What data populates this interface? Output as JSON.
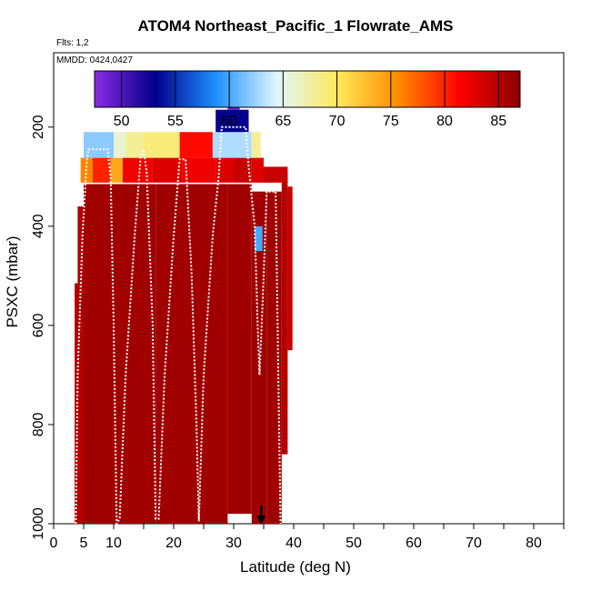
{
  "chart_data": {
    "type": "heatmap",
    "title": "ATOM4 Northeast_Pacific_1 Flowrate_AMS",
    "flights_label": "Flts: 1,2",
    "dates_label": "MMDD: 0424,0427",
    "xlabel": "Latitude (deg N)",
    "ylabel": "PSXC (mbar)",
    "xlim": [
      0,
      85
    ],
    "ylim": [
      1000,
      50
    ],
    "y_reversed": true,
    "x_ticks": [
      "0",
      "5",
      "10",
      "20",
      "30",
      "40",
      "50",
      "60",
      "70",
      "80"
    ],
    "x_tick_values": [
      0,
      5,
      10,
      20,
      30,
      40,
      50,
      60,
      70,
      80
    ],
    "y_ticks": [
      "200",
      "400",
      "600",
      "800",
      "1000"
    ],
    "y_tick_values": [
      200,
      400,
      600,
      800,
      1000
    ],
    "colorbar": {
      "range": [
        47.5,
        87
      ],
      "tick_labels": [
        "50",
        "55",
        "60",
        "65",
        "70",
        "75",
        "80",
        "85"
      ],
      "tick_values": [
        50,
        55,
        60,
        65,
        70,
        75,
        80,
        85
      ],
      "colors": [
        "#8a2be2",
        "#00008b",
        "#1e90ff",
        "#e0f6ff",
        "#ffe95a",
        "#ff8c00",
        "#ff0000",
        "#8b0000"
      ]
    },
    "cells": [
      {
        "lat": [
          3.5,
          4.5
        ],
        "p": [
          515,
          1000
        ],
        "value": 85
      },
      {
        "lat": [
          4.0,
          5.0
        ],
        "p": [
          360,
          1000
        ],
        "value": 85
      },
      {
        "lat": [
          5.0,
          10.0
        ],
        "p": [
          315,
          1000
        ],
        "value": 86
      },
      {
        "lat": [
          10.0,
          17.0
        ],
        "p": [
          315,
          1000
        ],
        "value": 86
      },
      {
        "lat": [
          17.0,
          25.0
        ],
        "p": [
          315,
          1000
        ],
        "value": 86
      },
      {
        "lat": [
          25.0,
          29.0
        ],
        "p": [
          315,
          1000
        ],
        "value": 86
      },
      {
        "lat": [
          29.0,
          33.0
        ],
        "p": [
          315,
          980
        ],
        "value": 86
      },
      {
        "lat": [
          33.0,
          35.5
        ],
        "p": [
          330,
          1000
        ],
        "value": 86
      },
      {
        "lat": [
          35.5,
          38.0
        ],
        "p": [
          330,
          1000
        ],
        "value": 86
      },
      {
        "lat": [
          38.0,
          39.0
        ],
        "p": [
          290,
          860
        ],
        "value": 85
      },
      {
        "lat": [
          39.0,
          39.8
        ],
        "p": [
          320,
          650
        ],
        "value": 84
      },
      {
        "lat": [
          4.5,
          6.5
        ],
        "p": [
          262,
          312
        ],
        "value": 76
      },
      {
        "lat": [
          6.5,
          9.5
        ],
        "p": [
          262,
          312
        ],
        "value": 80
      },
      {
        "lat": [
          9.5,
          11.5
        ],
        "p": [
          262,
          312
        ],
        "value": 74
      },
      {
        "lat": [
          11.5,
          16.5
        ],
        "p": [
          262,
          312
        ],
        "value": 82
      },
      {
        "lat": [
          16.5,
          21.5
        ],
        "p": [
          262,
          312
        ],
        "value": 83
      },
      {
        "lat": [
          21.5,
          27.0
        ],
        "p": [
          262,
          312
        ],
        "value": 82
      },
      {
        "lat": [
          27.0,
          30.0
        ],
        "p": [
          262,
          312
        ],
        "value": 83
      },
      {
        "lat": [
          30.0,
          33.0
        ],
        "p": [
          262,
          312
        ],
        "value": 84
      },
      {
        "lat": [
          33.0,
          35.0
        ],
        "p": [
          262,
          312
        ],
        "value": 83
      },
      {
        "lat": [
          35.0,
          39.0
        ],
        "p": [
          280,
          312
        ],
        "value": 84
      },
      {
        "lat": [
          5.0,
          10.0
        ],
        "p": [
          210,
          262
        ],
        "value": 62
      },
      {
        "lat": [
          10.0,
          12.0
        ],
        "p": [
          210,
          262
        ],
        "value": 66
      },
      {
        "lat": [
          12.0,
          15.0
        ],
        "p": [
          210,
          262
        ],
        "value": 68
      },
      {
        "lat": [
          15.0,
          21.0
        ],
        "p": [
          210,
          262
        ],
        "value": 69
      },
      {
        "lat": [
          21.0,
          26.5
        ],
        "p": [
          210,
          262
        ],
        "value": 81
      },
      {
        "lat": [
          26.5,
          33.0
        ],
        "p": [
          210,
          262
        ],
        "value": 63
      },
      {
        "lat": [
          33.0,
          34.5
        ],
        "p": [
          210,
          262
        ],
        "value": 68
      },
      {
        "lat": [
          27.0,
          32.5
        ],
        "p": [
          165,
          210
        ],
        "value": 53
      },
      {
        "lat": [
          29.0,
          31.0
        ],
        "p": [
          150,
          165
        ],
        "value": 49
      },
      {
        "lat": [
          33.5,
          34.8
        ],
        "p": [
          400,
          450
        ],
        "value": 60
      }
    ],
    "flight_track": [
      [
        3.7,
        1000
      ],
      [
        4.0,
        700
      ],
      [
        4.8,
        420
      ],
      [
        5.5,
        270
      ],
      [
        5.8,
        245
      ],
      [
        9.0,
        245
      ],
      [
        9.5,
        300
      ],
      [
        10.0,
        600
      ],
      [
        10.5,
        1000
      ],
      [
        11.0,
        990
      ],
      [
        12.0,
        700
      ],
      [
        13.5,
        420
      ],
      [
        14.5,
        260
      ],
      [
        15.0,
        245
      ],
      [
        15.5,
        290
      ],
      [
        16.5,
        600
      ],
      [
        17.0,
        990
      ],
      [
        17.5,
        990
      ],
      [
        18.5,
        700
      ],
      [
        20.0,
        420
      ],
      [
        21.0,
        265
      ],
      [
        22.0,
        265
      ],
      [
        23.0,
        500
      ],
      [
        23.8,
        800
      ],
      [
        24.2,
        995
      ],
      [
        25.0,
        700
      ],
      [
        26.5,
        420
      ],
      [
        27.5,
        300
      ],
      [
        28.0,
        200
      ],
      [
        32.0,
        200
      ],
      [
        32.5,
        280
      ],
      [
        33.5,
        400
      ],
      [
        34.0,
        600
      ],
      [
        34.3,
        700
      ],
      [
        34.8,
        560
      ],
      [
        35.3,
        400
      ],
      [
        35.5,
        330
      ],
      [
        37.0,
        330
      ],
      [
        37.2,
        500
      ],
      [
        37.8,
        1000
      ]
    ],
    "arrow_latitude": 34.6
  }
}
